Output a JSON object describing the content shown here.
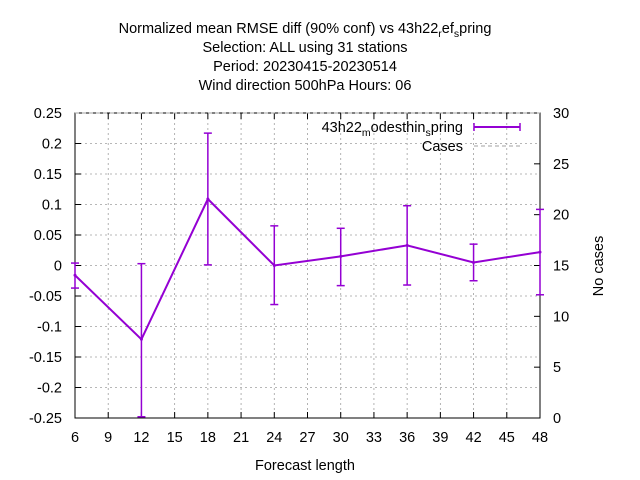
{
  "chart_data": {
    "type": "line",
    "title_lines": [
      "Normalized mean RMSE diff (90% conf) vs 43h22_ref_spring",
      "Selection: ALL using    31 stations",
      "Period: 20230415-20230514",
      "Wind direction 500hPa   Hours:  06"
    ],
    "xlabel": "Forecast length",
    "ylabel": "",
    "y2label": "No cases",
    "xlim": [
      6,
      48
    ],
    "ylim": [
      -0.25,
      0.25
    ],
    "y2lim": [
      0,
      30
    ],
    "x_ticks": [
      6,
      9,
      12,
      15,
      18,
      21,
      24,
      27,
      30,
      33,
      36,
      39,
      42,
      45,
      48
    ],
    "y_ticks": [
      -0.25,
      -0.2,
      -0.15,
      -0.1,
      -0.05,
      0,
      0.05,
      0.1,
      0.15,
      0.2,
      0.25
    ],
    "y_tick_labels": [
      "-0.25",
      "-0.2",
      "-0.15",
      "-0.1",
      "-0.05",
      "0",
      "0.05",
      "0.1",
      "0.15",
      "0.2",
      "0.25"
    ],
    "y2_ticks": [
      0,
      5,
      10,
      15,
      20,
      25,
      30
    ],
    "grid": true,
    "legend_position": "top-right",
    "series": [
      {
        "name": "43h22_modesthin_spring",
        "color": "#9400d3",
        "x": [
          6,
          12,
          18,
          24,
          30,
          36,
          42,
          48
        ],
        "y": [
          -0.016,
          -0.121,
          0.109,
          0.0,
          0.015,
          0.033,
          0.005,
          0.022
        ],
        "err_low": [
          -0.037,
          -0.248,
          0.001,
          -0.064,
          -0.033,
          -0.032,
          -0.025,
          -0.048
        ],
        "err_high": [
          0.004,
          0.003,
          0.217,
          0.065,
          0.061,
          0.098,
          0.035,
          0.092
        ]
      },
      {
        "name": "Cases",
        "color": "#a0a0a0",
        "axis": "y2",
        "x": [
          6,
          12,
          18,
          24,
          30,
          36,
          42,
          48
        ],
        "y": [
          30,
          30,
          30,
          30,
          30,
          30,
          30,
          30
        ]
      }
    ]
  }
}
